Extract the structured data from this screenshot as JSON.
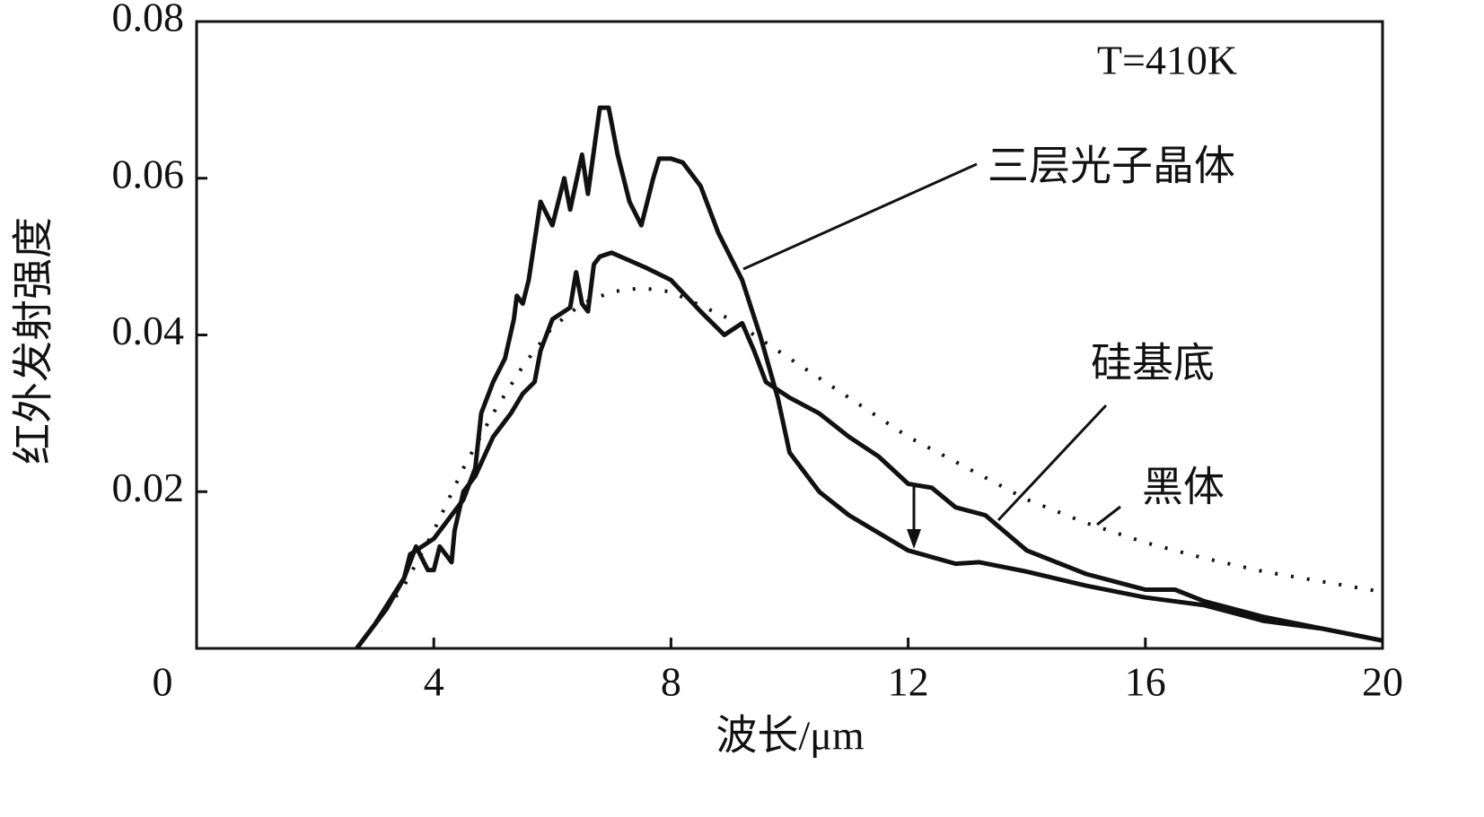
{
  "chart_data": {
    "type": "line",
    "annotation": "T=410K",
    "xlabel": "波长/μm",
    "ylabel": "红外发射强度",
    "xlim": [
      0,
      20
    ],
    "xticks": [
      0,
      4,
      8,
      12,
      16,
      20
    ],
    "ylim": [
      0,
      0.08
    ],
    "yticks": [
      0.02,
      0.04,
      0.06,
      0.08
    ],
    "series": [
      {
        "name": "三层光子晶体",
        "color": "#111111",
        "style": "solid",
        "x": [
          2.7,
          3.0,
          3.5,
          3.6,
          3.8,
          4.0,
          4.3,
          4.5,
          4.7,
          4.8,
          5.0,
          5.2,
          5.35,
          5.4,
          5.5,
          5.6,
          5.8,
          6.0,
          6.2,
          6.3,
          6.5,
          6.6,
          6.8,
          6.95,
          7.1,
          7.3,
          7.5,
          7.7,
          7.8,
          8.0,
          8.2,
          8.5,
          8.8,
          9.2,
          9.5,
          9.8,
          10.0,
          10.5,
          11.0,
          12.0,
          12.8,
          13.2,
          14.0,
          15.0,
          16.0,
          17.0,
          18.0,
          19.0,
          20.0
        ],
        "values": [
          0,
          0.003,
          0.009,
          0.012,
          0.013,
          0.014,
          0.017,
          0.019,
          0.023,
          0.03,
          0.034,
          0.037,
          0.042,
          0.045,
          0.044,
          0.047,
          0.057,
          0.054,
          0.06,
          0.056,
          0.063,
          0.058,
          0.069,
          0.069,
          0.063,
          0.057,
          0.054,
          0.06,
          0.0625,
          0.0625,
          0.062,
          0.059,
          0.053,
          0.047,
          0.04,
          0.032,
          0.025,
          0.02,
          0.017,
          0.0125,
          0.0108,
          0.011,
          0.0098,
          0.008,
          0.0065,
          0.0055,
          0.0035,
          0.0025,
          0.001
        ]
      },
      {
        "name": "硅基底",
        "color": "#111111",
        "style": "solid",
        "x": [
          2.7,
          3.2,
          3.5,
          3.7,
          3.9,
          4.0,
          4.1,
          4.2,
          4.3,
          4.35,
          4.5,
          4.7,
          5.0,
          5.3,
          5.5,
          5.7,
          5.8,
          6.0,
          6.3,
          6.4,
          6.5,
          6.6,
          6.7,
          6.8,
          7.0,
          7.3,
          7.6,
          8.0,
          8.5,
          8.9,
          9.2,
          9.4,
          9.6,
          10.0,
          10.5,
          11.0,
          11.5,
          12.0,
          12.4,
          12.8,
          13.3,
          14.0,
          15.0,
          16.0,
          16.5,
          17.0,
          18.0,
          19.0,
          20.0
        ],
        "values": [
          0,
          0.005,
          0.009,
          0.013,
          0.01,
          0.01,
          0.013,
          0.012,
          0.011,
          0.015,
          0.02,
          0.022,
          0.027,
          0.03,
          0.0325,
          0.034,
          0.038,
          0.042,
          0.0435,
          0.048,
          0.044,
          0.043,
          0.049,
          0.05,
          0.0505,
          0.0495,
          0.0485,
          0.047,
          0.043,
          0.04,
          0.0415,
          0.038,
          0.034,
          0.032,
          0.03,
          0.027,
          0.0245,
          0.021,
          0.0205,
          0.018,
          0.017,
          0.0125,
          0.0095,
          0.0075,
          0.0075,
          0.006,
          0.004,
          0.0025,
          0.001
        ]
      },
      {
        "name": "黑体",
        "color": "#111111",
        "style": "dotted",
        "x": [
          2.7,
          3.0,
          3.5,
          4.0,
          4.5,
          5.0,
          5.5,
          6.0,
          6.5,
          7.0,
          7.5,
          8.0,
          9.0,
          10.0,
          11.0,
          12.0,
          13.0,
          14.0,
          15.0,
          16.0,
          17.0,
          18.0,
          19.0,
          20.0
        ],
        "values": [
          0,
          0.003,
          0.008,
          0.015,
          0.023,
          0.03,
          0.036,
          0.041,
          0.044,
          0.0455,
          0.046,
          0.0455,
          0.042,
          0.037,
          0.032,
          0.027,
          0.023,
          0.019,
          0.016,
          0.0135,
          0.0115,
          0.0098,
          0.0085,
          0.0072
        ]
      }
    ]
  }
}
